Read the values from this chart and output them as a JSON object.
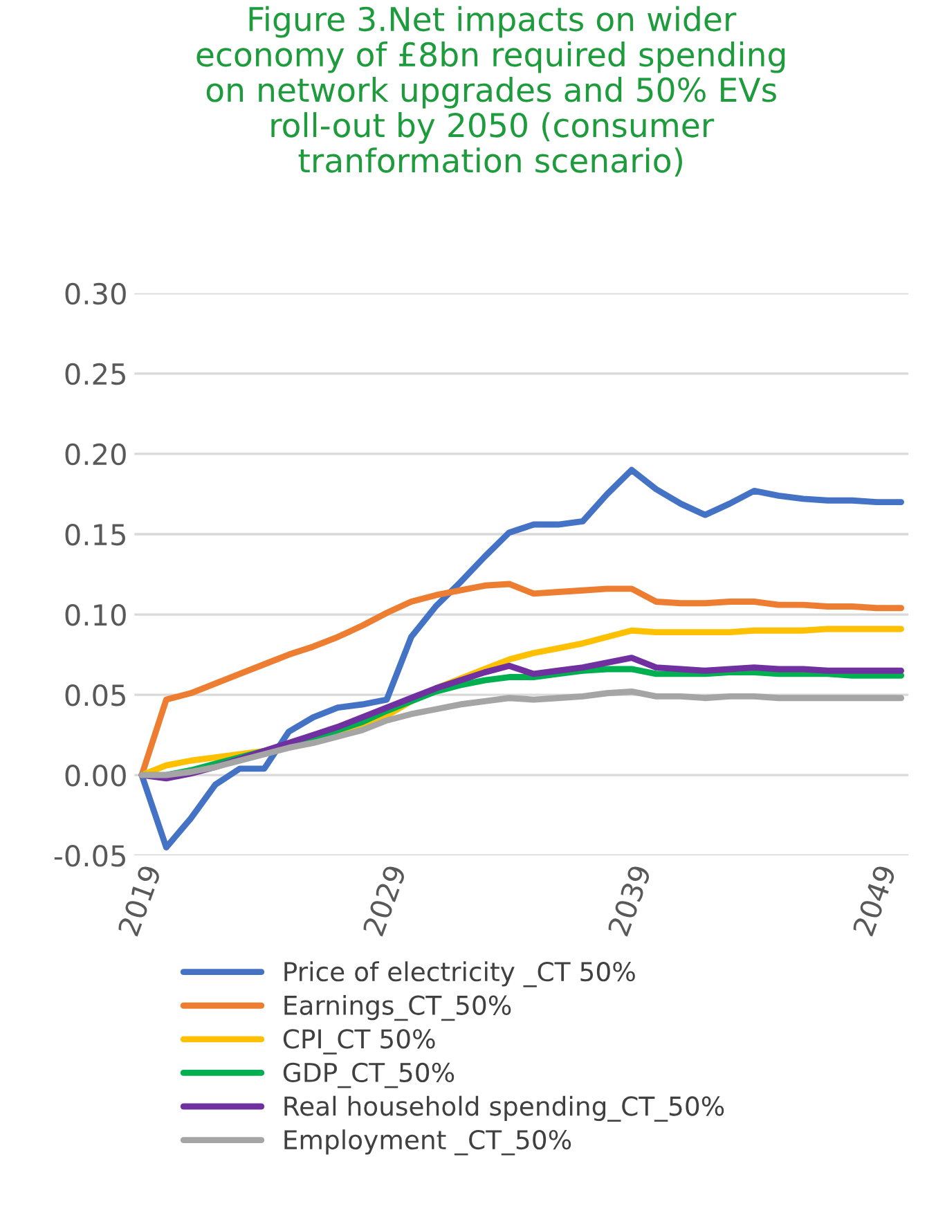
{
  "chart_data": {
    "type": "line",
    "title": "Figure 3.Net impacts on wider\neconomy of £8bn required spending\non network upgrades and 50% EVs\nroll-out by 2050 (consumer\ntranformation scenario)",
    "categories": [
      "2019",
      null,
      null,
      null,
      null,
      null,
      null,
      null,
      null,
      null,
      "2029",
      null,
      null,
      null,
      null,
      null,
      null,
      null,
      null,
      null,
      "2039",
      null,
      null,
      null,
      null,
      null,
      null,
      null,
      null,
      null,
      "2049",
      null
    ],
    "series": [
      {
        "name": "Price of electricity _CT 50%",
        "color": "#4472c4",
        "values": [
          0,
          -0.045,
          -0.027,
          -0.006,
          0.004,
          0.004,
          0.027,
          0.036,
          0.042,
          0.044,
          0.047,
          0.086,
          0.105,
          0.12,
          0.136,
          0.151,
          0.156,
          0.156,
          0.158,
          0.175,
          0.19,
          0.178,
          0.169,
          0.162,
          0.169,
          0.177,
          0.174,
          0.172,
          0.171,
          0.171,
          0.17,
          0.17
        ]
      },
      {
        "name": "Earnings_CT_50%",
        "color": "#ed7d31",
        "values": [
          0,
          0.047,
          0.051,
          0.057,
          0.063,
          0.069,
          0.075,
          0.08,
          0.086,
          0.093,
          0.101,
          0.108,
          0.112,
          0.115,
          0.118,
          0.119,
          0.113,
          0.114,
          0.115,
          0.116,
          0.116,
          0.108,
          0.107,
          0.107,
          0.108,
          0.108,
          0.106,
          0.106,
          0.105,
          0.105,
          0.104,
          0.104
        ]
      },
      {
        "name": "CPI_CT 50%",
        "color": "#ffc000",
        "values": [
          0,
          0.006,
          0.009,
          0.011,
          0.013,
          0.015,
          0.018,
          0.022,
          0.027,
          0.031,
          0.037,
          0.046,
          0.054,
          0.06,
          0.066,
          0.072,
          0.076,
          0.079,
          0.082,
          0.086,
          0.09,
          0.089,
          0.089,
          0.089,
          0.089,
          0.09,
          0.09,
          0.09,
          0.091,
          0.091,
          0.091,
          0.091
        ]
      },
      {
        "name": "GDP_CT_50%",
        "color": "#00b050",
        "values": [
          0,
          0,
          0.003,
          0.007,
          0.011,
          0.015,
          0.019,
          0.023,
          0.028,
          0.033,
          0.04,
          0.046,
          0.052,
          0.056,
          0.059,
          0.061,
          0.061,
          0.063,
          0.065,
          0.066,
          0.066,
          0.063,
          0.063,
          0.063,
          0.064,
          0.064,
          0.063,
          0.063,
          0.063,
          0.062,
          0.062,
          0.062
        ]
      },
      {
        "name": "Real household spending_CT_50%",
        "color": "#7030a0",
        "values": [
          0,
          -0.002,
          0.001,
          0.005,
          0.01,
          0.015,
          0.02,
          0.025,
          0.03,
          0.036,
          0.042,
          0.048,
          0.054,
          0.059,
          0.064,
          0.068,
          0.063,
          0.065,
          0.067,
          0.07,
          0.073,
          0.067,
          0.066,
          0.065,
          0.066,
          0.067,
          0.066,
          0.066,
          0.065,
          0.065,
          0.065,
          0.065
        ]
      },
      {
        "name": "Employment _CT_50%",
        "color": "#a5a5a5",
        "values": [
          0,
          0,
          0.002,
          0.005,
          0.009,
          0.013,
          0.017,
          0.02,
          0.024,
          0.028,
          0.034,
          0.038,
          0.041,
          0.044,
          0.046,
          0.048,
          0.047,
          0.048,
          0.049,
          0.051,
          0.052,
          0.049,
          0.049,
          0.048,
          0.049,
          0.049,
          0.048,
          0.048,
          0.048,
          0.048,
          0.048,
          0.048
        ]
      }
    ],
    "ylim": [
      -0.05,
      0.3
    ],
    "yticks": [
      {
        "value": -0.05,
        "label": "-0.05"
      },
      {
        "value": 0,
        "label": "0.00"
      },
      {
        "value": 0.05,
        "label": "0.05"
      },
      {
        "value": 0.1,
        "label": "0.10"
      },
      {
        "value": 0.15,
        "label": "0.15"
      },
      {
        "value": 0.2,
        "label": "0.20"
      },
      {
        "value": 0.25,
        "label": "0.25"
      },
      {
        "value": 0.3,
        "label": "0.30"
      }
    ],
    "grid": "y",
    "legend": "bottom",
    "marker": "none",
    "line_style": "solid"
  }
}
